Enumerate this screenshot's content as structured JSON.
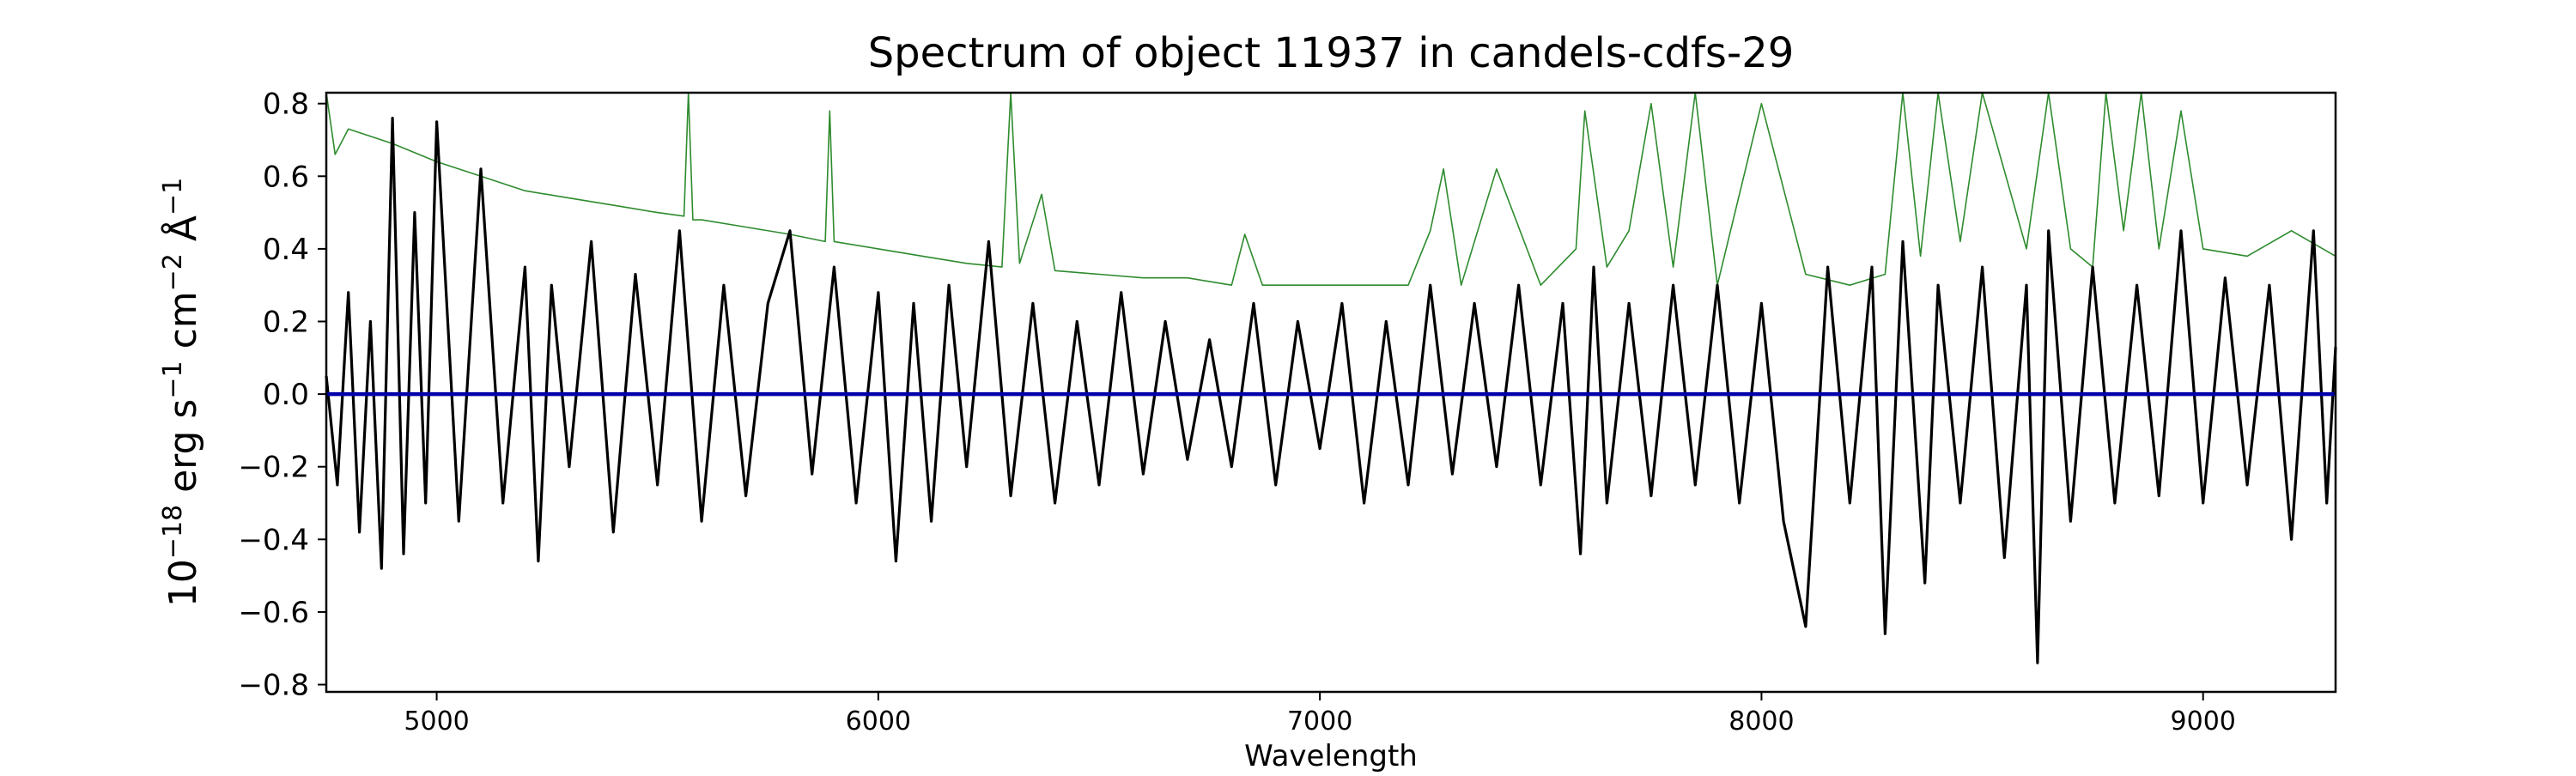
{
  "chart_data": {
    "type": "line",
    "title": "Spectrum of object 11937 in candels-cdfs-29",
    "xlabel": "Wavelength",
    "ylabel_parts": [
      "10",
      "−18",
      " erg s",
      "−1",
      " cm",
      "−2",
      " Å",
      "−1"
    ],
    "xlim": [
      4750,
      9300
    ],
    "ylim": [
      -0.82,
      0.83
    ],
    "xticks": [
      5000,
      6000,
      7000,
      8000,
      9000
    ],
    "xtick_labels": [
      "5000",
      "6000",
      "7000",
      "8000",
      "9000"
    ],
    "yticks": [
      -0.8,
      -0.6,
      -0.4,
      -0.2,
      0.0,
      0.2,
      0.4,
      0.6,
      0.8
    ],
    "ytick_labels": [
      "−0.8",
      "−0.6",
      "−0.4",
      "−0.2",
      "0.0",
      "0.2",
      "0.4",
      "0.6",
      "0.8"
    ],
    "grid": false,
    "legend": "none",
    "colors": {
      "flux": "#000000",
      "error": "#2e8b2e",
      "continuum": "#0000a8"
    },
    "series": [
      {
        "role": "flux",
        "color": "#000000",
        "x": [
          4750,
          4775,
          4800,
          4825,
          4850,
          4875,
          4900,
          4925,
          4950,
          4975,
          5000,
          5050,
          5100,
          5150,
          5200,
          5230,
          5260,
          5300,
          5350,
          5400,
          5450,
          5500,
          5550,
          5600,
          5650,
          5700,
          5750,
          5800,
          5850,
          5900,
          5950,
          6000,
          6040,
          6080,
          6120,
          6160,
          6200,
          6250,
          6300,
          6350,
          6400,
          6450,
          6500,
          6550,
          6600,
          6650,
          6700,
          6750,
          6800,
          6850,
          6900,
          6950,
          7000,
          7050,
          7100,
          7150,
          7200,
          7250,
          7300,
          7350,
          7400,
          7450,
          7500,
          7550,
          7590,
          7620,
          7650,
          7700,
          7750,
          7800,
          7850,
          7900,
          7950,
          8000,
          8050,
          8100,
          8150,
          8200,
          8250,
          8280,
          8320,
          8370,
          8400,
          8450,
          8500,
          8550,
          8600,
          8625,
          8650,
          8700,
          8750,
          8800,
          8850,
          8900,
          8950,
          9000,
          9050,
          9100,
          9150,
          9200,
          9250,
          9280,
          9300
        ],
        "y": [
          0.05,
          -0.25,
          0.28,
          -0.38,
          0.2,
          -0.48,
          0.76,
          -0.44,
          0.5,
          -0.3,
          0.75,
          -0.35,
          0.62,
          -0.3,
          0.35,
          -0.46,
          0.3,
          -0.2,
          0.42,
          -0.38,
          0.33,
          -0.25,
          0.45,
          -0.35,
          0.3,
          -0.28,
          0.25,
          0.45,
          -0.22,
          0.35,
          -0.3,
          0.28,
          -0.46,
          0.25,
          -0.35,
          0.3,
          -0.2,
          0.42,
          -0.28,
          0.25,
          -0.3,
          0.2,
          -0.25,
          0.28,
          -0.22,
          0.2,
          -0.18,
          0.15,
          -0.2,
          0.25,
          -0.25,
          0.2,
          -0.15,
          0.25,
          -0.3,
          0.2,
          -0.25,
          0.3,
          -0.22,
          0.25,
          -0.2,
          0.3,
          -0.25,
          0.25,
          -0.44,
          0.35,
          -0.3,
          0.25,
          -0.28,
          0.3,
          -0.25,
          0.3,
          -0.3,
          0.25,
          -0.35,
          -0.64,
          0.35,
          -0.3,
          0.35,
          -0.66,
          0.42,
          -0.52,
          0.3,
          -0.3,
          0.35,
          -0.45,
          0.3,
          -0.74,
          0.45,
          -0.35,
          0.35,
          -0.3,
          0.3,
          -0.28,
          0.45,
          -0.3,
          0.32,
          -0.25,
          0.3,
          -0.4,
          0.45,
          -0.3,
          0.13
        ]
      },
      {
        "role": "error",
        "color": "#2e8b2e",
        "x": [
          4750,
          4770,
          4800,
          4850,
          4900,
          5000,
          5100,
          5200,
          5300,
          5400,
          5500,
          5560,
          5570,
          5580,
          5600,
          5700,
          5800,
          5880,
          5890,
          5900,
          6000,
          6100,
          6200,
          6280,
          6300,
          6320,
          6370,
          6400,
          6500,
          6600,
          6700,
          6800,
          6830,
          6870,
          6900,
          7000,
          7100,
          7200,
          7250,
          7280,
          7320,
          7400,
          7500,
          7580,
          7600,
          7650,
          7700,
          7750,
          7800,
          7850,
          7900,
          8000,
          8100,
          8200,
          8280,
          8320,
          8360,
          8400,
          8450,
          8500,
          8600,
          8650,
          8700,
          8750,
          8780,
          8820,
          8860,
          8900,
          8950,
          9000,
          9100,
          9200,
          9300
        ],
        "y": [
          0.83,
          0.66,
          0.73,
          0.71,
          0.69,
          0.64,
          0.6,
          0.56,
          0.54,
          0.52,
          0.5,
          0.49,
          0.83,
          0.48,
          0.48,
          0.46,
          0.44,
          0.42,
          0.78,
          0.42,
          0.4,
          0.38,
          0.36,
          0.35,
          0.83,
          0.36,
          0.55,
          0.34,
          0.33,
          0.32,
          0.32,
          0.3,
          0.44,
          0.3,
          0.3,
          0.3,
          0.3,
          0.3,
          0.45,
          0.62,
          0.3,
          0.62,
          0.3,
          0.4,
          0.78,
          0.35,
          0.45,
          0.8,
          0.35,
          0.83,
          0.3,
          0.8,
          0.33,
          0.3,
          0.33,
          0.83,
          0.38,
          0.83,
          0.42,
          0.83,
          0.4,
          0.83,
          0.4,
          0.35,
          0.83,
          0.45,
          0.83,
          0.4,
          0.78,
          0.4,
          0.38,
          0.45,
          0.38
        ]
      },
      {
        "role": "continuum",
        "color": "#0000a8",
        "x": [
          4750,
          9300
        ],
        "y": [
          0.0,
          0.0
        ]
      }
    ]
  }
}
